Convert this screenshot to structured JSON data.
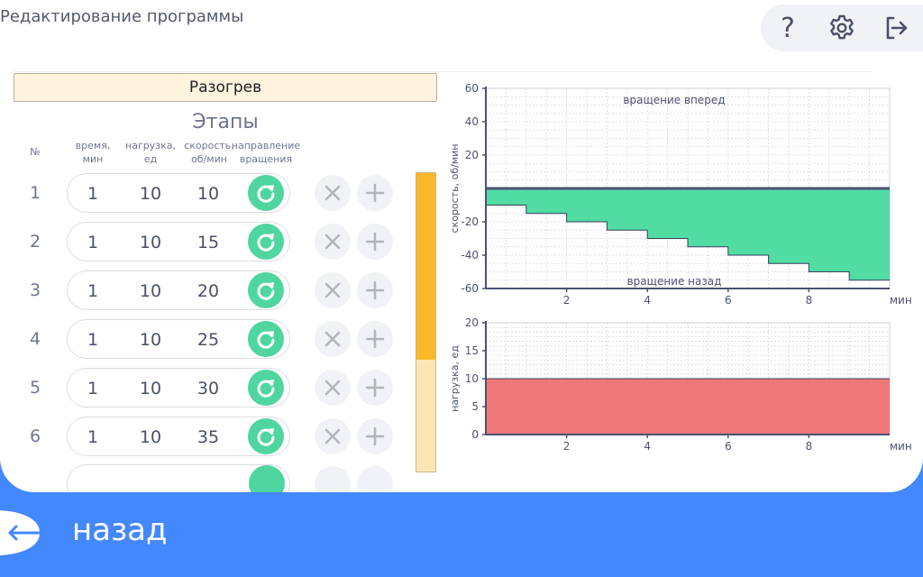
{
  "header": {
    "title": "Редактирование программы",
    "buttons": [
      {
        "icon": "help-icon",
        "label": "?"
      },
      {
        "icon": "gear-icon"
      },
      {
        "icon": "logout-icon"
      }
    ]
  },
  "program": {
    "name": "Разогрев"
  },
  "stages": {
    "title": "Этапы",
    "columns": {
      "num": "№",
      "time": [
        "время,",
        "мин"
      ],
      "load": [
        "нагрузка,",
        "ед"
      ],
      "speed": [
        "скорость,",
        "об/мин"
      ],
      "direction": [
        "направление",
        "вращения"
      ]
    },
    "rows": [
      {
        "num": "1",
        "time": "1",
        "load": "10",
        "speed": "10"
      },
      {
        "num": "2",
        "time": "1",
        "load": "10",
        "speed": "15"
      },
      {
        "num": "3",
        "time": "1",
        "load": "10",
        "speed": "20"
      },
      {
        "num": "4",
        "time": "1",
        "load": "10",
        "speed": "25"
      },
      {
        "num": "5",
        "time": "1",
        "load": "10",
        "speed": "30"
      },
      {
        "num": "6",
        "time": "1",
        "load": "10",
        "speed": "35"
      }
    ],
    "row_icons": {
      "direction": "rotate-icon",
      "delete": "close-icon",
      "add": "plus-icon"
    },
    "scroll_fraction_visible": 0.62,
    "colors": {
      "direction": "#4fd6a0",
      "scroll": "#fbb829",
      "scroll_track": "#fde6b3"
    }
  },
  "chart_data": [
    {
      "type": "area",
      "ylabel": "скорость, об/мин",
      "xlabel": "мин",
      "xlim": [
        0,
        10
      ],
      "ylim": [
        -60,
        60
      ],
      "xticks": [
        "2",
        "4",
        "6",
        "8"
      ],
      "yticks": [
        "60",
        "40",
        "20",
        "-20",
        "-40",
        "-60"
      ],
      "annotations": {
        "top": "вращение вперед",
        "bottom": "вращение назад"
      },
      "step_x": [
        0,
        1,
        2,
        3,
        4,
        5,
        6,
        7,
        8,
        9,
        10
      ],
      "values": [
        -10,
        -15,
        -20,
        -25,
        -30,
        -35,
        -40,
        -45,
        -50,
        -55
      ],
      "fill": "#50dca3",
      "grid": true
    },
    {
      "type": "area",
      "ylabel": "нагрузка, ед",
      "xlabel": "мин",
      "xlim": [
        0,
        10
      ],
      "ylim": [
        0,
        20
      ],
      "xticks": [
        "2",
        "4",
        "6",
        "8"
      ],
      "yticks": [
        "20",
        "15",
        "10",
        "5",
        "0"
      ],
      "values": [
        10,
        10,
        10,
        10,
        10,
        10,
        10,
        10,
        10,
        10
      ],
      "fill": "#ef7777",
      "grid": true
    }
  ],
  "footer": {
    "back_label": "назад",
    "back_icon": "back-arrow-icon",
    "color": "#4488ff"
  }
}
